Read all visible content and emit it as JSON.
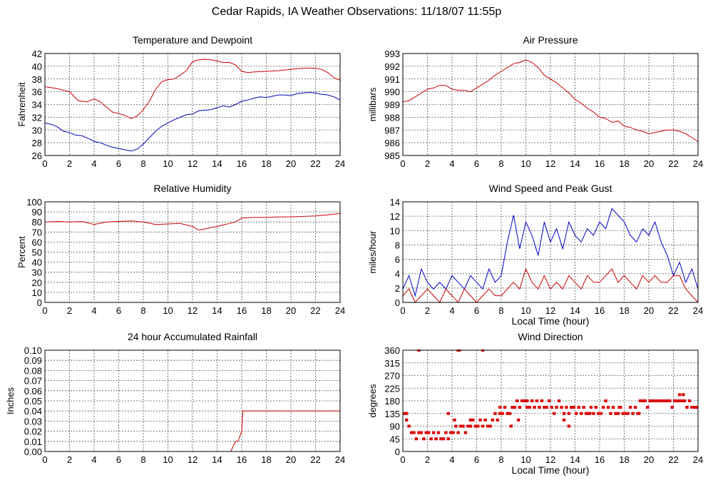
{
  "page": {
    "title": "Cedar Rapids, IA Weather Observations: 11/18/07 11:55p"
  },
  "chart_data": [
    {
      "id": "temp",
      "type": "line",
      "title": "Temperature and Dewpoint",
      "xlabel": "",
      "ylabel": "Fahrenheit",
      "xlim": [
        0,
        24
      ],
      "ylim": [
        26,
        42
      ],
      "xticks": [
        "0",
        "2",
        "4",
        "6",
        "8",
        "10",
        "12",
        "14",
        "16",
        "18",
        "20",
        "22",
        "24"
      ],
      "yticks": [
        "26",
        "28",
        "30",
        "32",
        "34",
        "36",
        "38",
        "40",
        "42"
      ],
      "grid": true,
      "series": [
        {
          "color": "#cc0000",
          "x": [
            0,
            1,
            2,
            2.7,
            3.4,
            4,
            4.5,
            5,
            5.5,
            6,
            6.5,
            7,
            7.5,
            8,
            8.5,
            9,
            9.5,
            10,
            10.5,
            11,
            11.5,
            12,
            12.5,
            13,
            13.5,
            14,
            14.5,
            15,
            15.5,
            16,
            16.5,
            17,
            18,
            19,
            20,
            20.5,
            21,
            21.5,
            22,
            22.5,
            23,
            23.5,
            24
          ],
          "y": [
            36.8,
            36.5,
            36,
            34.6,
            34.4,
            34.9,
            34.4,
            33.6,
            32.8,
            32.6,
            32.3,
            31.8,
            32.2,
            33.2,
            34.5,
            36.4,
            37.6,
            37.9,
            38,
            38.6,
            39.3,
            40.7,
            41,
            41.1,
            41,
            40.8,
            40.6,
            40.6,
            40.2,
            39.2,
            39,
            39.1,
            39.2,
            39.3,
            39.5,
            39.6,
            39.7,
            39.7,
            39.7,
            39.5,
            39,
            38.2,
            37.8
          ]
        },
        {
          "color": "#0000bb",
          "x": [
            0,
            0.5,
            1,
            1.5,
            2,
            2.5,
            3,
            3.5,
            4,
            4.5,
            5,
            5.5,
            6,
            6.5,
            7,
            7.5,
            8,
            8.5,
            9,
            9.5,
            10,
            10.5,
            11,
            11.5,
            12,
            12.5,
            13,
            13.5,
            14,
            14.5,
            15,
            15.5,
            16,
            16.5,
            17,
            17.5,
            18,
            18.5,
            19,
            19.5,
            20,
            20.5,
            21,
            21.5,
            22,
            22.5,
            23,
            23.5,
            24
          ],
          "y": [
            31.1,
            30.9,
            30.5,
            29.8,
            29.6,
            29.2,
            29.1,
            28.7,
            28.2,
            28,
            27.6,
            27.3,
            27.1,
            26.9,
            26.7,
            27,
            27.8,
            28.8,
            29.8,
            30.6,
            31.1,
            31.6,
            32,
            32.4,
            32.5,
            33,
            33.1,
            33.2,
            33.5,
            33.8,
            33.6,
            34,
            34.5,
            34.7,
            35,
            35.2,
            35.1,
            35.3,
            35.5,
            35.5,
            35.4,
            35.7,
            35.8,
            35.9,
            35.8,
            35.6,
            35.5,
            35.2,
            34.7
          ]
        }
      ]
    },
    {
      "id": "pressure",
      "type": "line",
      "title": "Air Pressure",
      "xlabel": "",
      "ylabel": "millibars",
      "xlim": [
        0,
        24
      ],
      "ylim": [
        985,
        993
      ],
      "xticks": [
        "0",
        "2",
        "4",
        "6",
        "8",
        "10",
        "12",
        "14",
        "16",
        "18",
        "20",
        "22",
        "24"
      ],
      "yticks": [
        "985",
        "986",
        "987",
        "988",
        "989",
        "990",
        "991",
        "992",
        "993"
      ],
      "grid": true,
      "series": [
        {
          "color": "#cc0000",
          "x": [
            0,
            0.5,
            1,
            1.5,
            2,
            2.5,
            3,
            3.5,
            4,
            4.5,
            5,
            5.5,
            6,
            6.5,
            7,
            7.5,
            8,
            8.5,
            9,
            9.5,
            10,
            10.5,
            11,
            11.5,
            12,
            12.5,
            13,
            13.5,
            14,
            14.5,
            15,
            15.5,
            16,
            16.5,
            17,
            17.5,
            18,
            18.5,
            19,
            19.5,
            20,
            20.5,
            21,
            21.5,
            22,
            22.5,
            23,
            23.5,
            24
          ],
          "y": [
            989.2,
            989.3,
            989.6,
            989.9,
            990.2,
            990.3,
            990.5,
            990.5,
            990.2,
            990.1,
            990.1,
            990,
            990.3,
            990.6,
            990.9,
            991.3,
            991.6,
            991.9,
            992.2,
            992.3,
            992.5,
            992.3,
            991.9,
            991.3,
            991,
            990.7,
            990.3,
            989.9,
            989.4,
            989.1,
            988.7,
            988.4,
            988,
            987.9,
            987.6,
            987.7,
            987.3,
            987.2,
            987,
            986.9,
            986.7,
            986.8,
            986.9,
            987,
            987,
            986.9,
            986.7,
            986.4,
            986.1
          ]
        }
      ]
    },
    {
      "id": "humidity",
      "type": "line",
      "title": "Relative Humidity",
      "xlabel": "",
      "ylabel": "Percent",
      "xlim": [
        0,
        24
      ],
      "ylim": [
        0,
        100
      ],
      "xticks": [
        "0",
        "2",
        "4",
        "6",
        "8",
        "10",
        "12",
        "14",
        "16",
        "18",
        "20",
        "22",
        "24"
      ],
      "yticks": [
        "0",
        "10",
        "20",
        "30",
        "40",
        "50",
        "60",
        "70",
        "80",
        "90",
        "100"
      ],
      "grid": true,
      "series": [
        {
          "color": "#cc0000",
          "x": [
            0,
            1,
            2,
            3,
            4,
            5,
            6,
            7,
            7.5,
            8,
            9,
            10,
            11,
            12,
            12.5,
            13,
            13.5,
            14,
            14.5,
            15,
            15.5,
            16,
            17,
            18,
            19,
            20,
            21,
            22,
            23,
            24
          ],
          "y": [
            80,
            80.5,
            80,
            80.5,
            77.5,
            80,
            80.5,
            81,
            80.5,
            80,
            77.5,
            78,
            78.5,
            75.5,
            72,
            73,
            74.5,
            75.5,
            77,
            78.5,
            80,
            84,
            84.5,
            84.5,
            85,
            85,
            85.5,
            86,
            87,
            88.5
          ]
        }
      ]
    },
    {
      "id": "wind",
      "type": "line",
      "title": "Wind Speed and Peak Gust",
      "xlabel": "Local Time (hour)",
      "ylabel": "miles/hour",
      "xlim": [
        0,
        24
      ],
      "ylim": [
        0,
        15
      ],
      "xticks": [
        "0",
        "2",
        "4",
        "6",
        "8",
        "10",
        "12",
        "14",
        "16",
        "18",
        "20",
        "22",
        "24"
      ],
      "yticks": [
        "0",
        "2",
        "4",
        "6",
        "8",
        "10",
        "12",
        "14"
      ],
      "grid": true,
      "series": [
        {
          "color": "#0000cc",
          "x": [
            0,
            0.5,
            1,
            1.5,
            2,
            2.5,
            3,
            3.5,
            4,
            4.5,
            5,
            5.5,
            6,
            6.5,
            7,
            7.5,
            8,
            8.5,
            9,
            9.5,
            10,
            10.5,
            11,
            11.5,
            12,
            12.5,
            13,
            13.5,
            14,
            14.5,
            15,
            15.5,
            16,
            16.5,
            17,
            17.5,
            18,
            18.5,
            19,
            19.5,
            20,
            20.5,
            21,
            21.5,
            22,
            22.5,
            23,
            23.5,
            24
          ],
          "y": [
            2,
            4,
            1,
            5,
            3,
            2,
            3,
            2,
            4,
            3,
            2,
            4,
            3,
            2,
            5,
            3,
            4,
            9,
            13,
            8,
            12,
            10,
            7,
            12,
            9,
            11,
            8,
            12,
            10,
            9,
            11,
            10,
            12,
            11,
            14,
            13,
            12,
            10,
            9,
            11,
            10,
            12,
            9,
            7,
            4,
            6,
            3,
            5,
            2
          ]
        },
        {
          "color": "#cc0000",
          "x": [
            0,
            0.5,
            1,
            1.5,
            2,
            2.5,
            3,
            3.5,
            4,
            4.5,
            5,
            5.5,
            6,
            6.5,
            7,
            7.5,
            8,
            8.5,
            9,
            9.5,
            10,
            10.5,
            11,
            11.5,
            12,
            12.5,
            13,
            13.5,
            14,
            14.5,
            15,
            15.5,
            16,
            16.5,
            17,
            17.5,
            18,
            18.5,
            19,
            19.5,
            20,
            20.5,
            21,
            21.5,
            22,
            22.5,
            23,
            23.5,
            24
          ],
          "y": [
            1,
            2,
            0,
            1,
            2,
            1,
            0,
            2,
            1,
            0,
            2,
            1,
            0,
            1,
            2,
            1,
            1,
            2,
            3,
            2,
            5,
            3,
            2,
            4,
            2,
            3,
            2,
            4,
            3,
            2,
            4,
            3,
            3,
            4,
            5,
            3,
            4,
            3,
            2,
            4,
            3,
            4,
            3,
            3,
            4,
            4,
            2,
            1,
            0
          ]
        }
      ]
    },
    {
      "id": "rain",
      "type": "line",
      "title": "24 hour Accumulated Rainfall",
      "xlabel": "",
      "ylabel": "Inches",
      "xlim": [
        0,
        24
      ],
      "ylim": [
        0,
        0.1
      ],
      "xticks": [
        "0",
        "2",
        "4",
        "6",
        "8",
        "10",
        "12",
        "14",
        "16",
        "18",
        "20",
        "22",
        "24"
      ],
      "yticks": [
        "0.00",
        "0.01",
        "0.02",
        "0.03",
        "0.04",
        "0.05",
        "0.06",
        "0.07",
        "0.08",
        "0.09",
        "0.10"
      ],
      "grid": true,
      "series": [
        {
          "color": "#cc0000",
          "x": [
            0,
            15.1,
            15.5,
            15.7,
            16,
            16.1,
            24
          ],
          "y": [
            0,
            0,
            0.01,
            0.01,
            0.02,
            0.04,
            0.04
          ]
        }
      ]
    },
    {
      "id": "direction",
      "type": "scatter",
      "title": "Wind Direction",
      "xlabel": "Local Time (hour)",
      "ylabel": "degrees",
      "xlim": [
        0,
        24
      ],
      "ylim": [
        0,
        360
      ],
      "xticks": [
        "0",
        "2",
        "4",
        "6",
        "8",
        "10",
        "12",
        "14",
        "16",
        "18",
        "20",
        "22",
        "24"
      ],
      "yticks": [
        "0",
        "45",
        "90",
        "135",
        "180",
        "225",
        "270",
        "315",
        "360"
      ],
      "grid": true,
      "series": [
        {
          "color": "#dd0000",
          "x": [
            0.1,
            0.3,
            0.5,
            0.7,
            0.9,
            1.1,
            1.3,
            1.5,
            1.7,
            1.9,
            2.1,
            2.3,
            2.5,
            2.7,
            2.9,
            3.1,
            3.3,
            3.5,
            3.7,
            3.9,
            4.1,
            4.3,
            4.5,
            4.7,
            4.9,
            5.1,
            5.3,
            5.5,
            5.7,
            5.9,
            6.1,
            6.3,
            6.5,
            6.7,
            6.9,
            7.1,
            7.3,
            7.5,
            7.7,
            7.9,
            8.1,
            8.3,
            8.5,
            8.7,
            8.9,
            9.1,
            9.3,
            9.5,
            9.7,
            9.9,
            10.1,
            10.3,
            10.5,
            10.7,
            10.9,
            11.1,
            11.3,
            11.5,
            11.7,
            11.9,
            12.1,
            12.3,
            12.5,
            12.7,
            12.9,
            13.1,
            13.3,
            13.5,
            13.7,
            13.9,
            14.1,
            14.3,
            14.5,
            14.7,
            14.9,
            15.1,
            15.3,
            15.5,
            15.7,
            15.9,
            16.1,
            16.3,
            16.5,
            16.7,
            16.9,
            17.1,
            17.3,
            17.5,
            17.7,
            17.9,
            18.1,
            18.3,
            18.5,
            18.7,
            18.9,
            19.1,
            19.3,
            19.5,
            19.7,
            19.9,
            20.1,
            20.3,
            20.5,
            20.7,
            20.9,
            21.1,
            21.3,
            21.5,
            21.7,
            21.9,
            22.1,
            22.3,
            22.5,
            22.7,
            22.9,
            23.1,
            23.3,
            23.5,
            23.7,
            23.9,
            1.3,
            4.5,
            4.6,
            6.5,
            3.7,
            4.2,
            5.5,
            7.9,
            8.8,
            9.4,
            10.1,
            13.1,
            13.5,
            15.2,
            17.6,
            19.2,
            22.5,
            22.8,
            0.3
          ],
          "y": [
            135,
            112,
            90,
            67,
            67,
            45,
            67,
            67,
            45,
            67,
            67,
            45,
            67,
            45,
            67,
            45,
            45,
            67,
            45,
            67,
            67,
            90,
            67,
            90,
            90,
            67,
            90,
            90,
            112,
            90,
            90,
            112,
            90,
            112,
            90,
            90,
            112,
            135,
            112,
            135,
            135,
            157,
            135,
            135,
            157,
            157,
            180,
            157,
            180,
            180,
            180,
            157,
            180,
            157,
            180,
            157,
            180,
            157,
            157,
            180,
            157,
            135,
            157,
            180,
            157,
            135,
            157,
            135,
            157,
            157,
            135,
            157,
            135,
            157,
            135,
            135,
            157,
            135,
            157,
            135,
            135,
            157,
            180,
            157,
            135,
            157,
            135,
            135,
            157,
            135,
            135,
            135,
            157,
            135,
            157,
            135,
            180,
            180,
            180,
            157,
            180,
            180,
            180,
            180,
            180,
            180,
            180,
            180,
            180,
            157,
            180,
            180,
            180,
            180,
            180,
            157,
            180,
            157,
            157,
            157,
            360,
            360,
            360,
            360,
            135,
            112,
            112,
            157,
            90,
            112,
            157,
            112,
            90,
            135,
            157,
            135,
            202,
            202,
            135
          ]
        }
      ]
    }
  ]
}
